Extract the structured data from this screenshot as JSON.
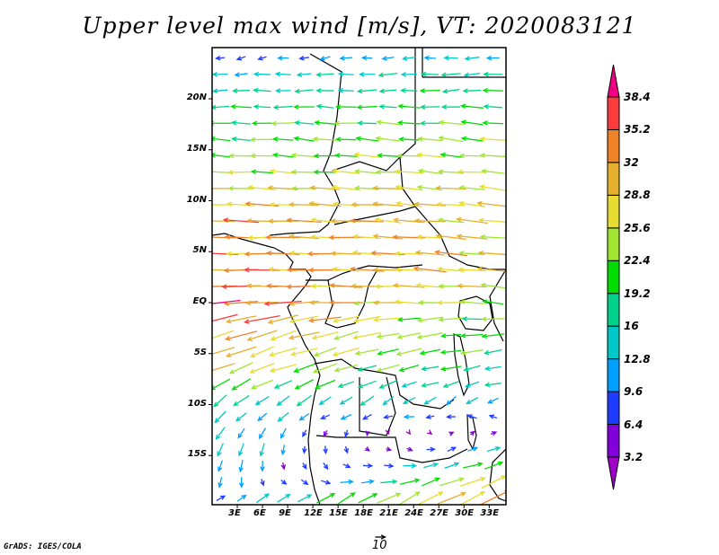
{
  "title": "Upper level max wind [m/s], VT: 2020083121",
  "footer": "GrADS: IGES/COLA",
  "reference_vector": {
    "label": "10",
    "speed": 10
  },
  "chart_data": {
    "type": "vector",
    "title": "Upper level max wind [m/s], VT: 2020083121",
    "units": "m/s",
    "lon_range": [
      0,
      35
    ],
    "lat_range": [
      -20,
      25
    ],
    "x_ticks": [
      {
        "value": 3,
        "label": "3E"
      },
      {
        "value": 6,
        "label": "6E"
      },
      {
        "value": 9,
        "label": "9E"
      },
      {
        "value": 12,
        "label": "12E"
      },
      {
        "value": 15,
        "label": "15E"
      },
      {
        "value": 18,
        "label": "18E"
      },
      {
        "value": 21,
        "label": "21E"
      },
      {
        "value": 24,
        "label": "24E"
      },
      {
        "value": 27,
        "label": "27E"
      },
      {
        "value": 30,
        "label": "30E"
      },
      {
        "value": 33,
        "label": "33E"
      }
    ],
    "y_ticks": [
      {
        "value": 20,
        "label": "20N"
      },
      {
        "value": 15,
        "label": "15N"
      },
      {
        "value": 10,
        "label": "10N"
      },
      {
        "value": 5,
        "label": "5N"
      },
      {
        "value": 0,
        "label": "EQ"
      },
      {
        "value": -5,
        "label": "5S"
      },
      {
        "value": -10,
        "label": "10S"
      },
      {
        "value": -15,
        "label": "15S"
      }
    ],
    "colorbar": {
      "levels": [
        "3.2",
        "6.4",
        "9.6",
        "12.8",
        "16",
        "19.2",
        "22.4",
        "25.6",
        "28.8",
        "32",
        "35.2",
        "38.4"
      ],
      "level_values": [
        3.2,
        6.4,
        9.6,
        12.8,
        16,
        19.2,
        22.4,
        25.6,
        28.8,
        32,
        35.2,
        38.4
      ],
      "colors": [
        "#a000c8",
        "#8200dc",
        "#1e3cff",
        "#00a0ff",
        "#00c8c8",
        "#00d28c",
        "#00dc00",
        "#a0e632",
        "#e6dc32",
        "#e6af2d",
        "#f08228",
        "#fa3c3c",
        "#f00082"
      ]
    },
    "wind_rows_note": "approximate zonal profile: [lat, u_west, v_west, u_east, v_east] in m/s",
    "wind_rows": [
      [
        24,
        -8,
        -2,
        -14,
        0
      ],
      [
        22.4,
        -14,
        0,
        -18,
        -1
      ],
      [
        20.8,
        -16,
        0,
        -18,
        -1
      ],
      [
        19.2,
        -18,
        0,
        -20,
        1
      ],
      [
        17.6,
        -20,
        0,
        -22,
        2
      ],
      [
        16,
        -20,
        1,
        -24,
        3
      ],
      [
        14.4,
        -22,
        1,
        -24,
        2
      ],
      [
        12.8,
        -24,
        1,
        -26,
        2
      ],
      [
        11.2,
        -28,
        1,
        -27,
        3
      ],
      [
        9.6,
        -30,
        1,
        -28,
        3
      ],
      [
        8,
        -32,
        1,
        -28,
        3
      ],
      [
        6.4,
        -32,
        0,
        -28,
        3
      ],
      [
        4.8,
        -33,
        0,
        -28,
        3
      ],
      [
        3.2,
        -34,
        0,
        -27,
        3
      ],
      [
        1.6,
        -35,
        0,
        -25,
        2
      ],
      [
        0,
        -36,
        -3,
        -22,
        2
      ],
      [
        -1.6,
        -34,
        -8,
        -20,
        0
      ],
      [
        -3.2,
        -30,
        -10,
        -20,
        -1
      ],
      [
        -4.8,
        -28,
        -10,
        -19,
        -2
      ],
      [
        -6.4,
        -26,
        -10,
        -16,
        -2
      ],
      [
        -8,
        -20,
        -10,
        -14,
        -3
      ],
      [
        -9.6,
        -14,
        -10,
        -10,
        -6
      ],
      [
        -11.2,
        -10,
        -10,
        -8,
        3
      ],
      [
        -12.8,
        -8,
        -12,
        6,
        4
      ],
      [
        -14.4,
        -6,
        -14,
        12,
        6
      ],
      [
        -16,
        -4,
        -12,
        20,
        8
      ],
      [
        -17.6,
        -2,
        -10,
        28,
        12
      ],
      [
        -19.2,
        8,
        6,
        30,
        14
      ]
    ],
    "grid_lon_step": 2.5
  }
}
